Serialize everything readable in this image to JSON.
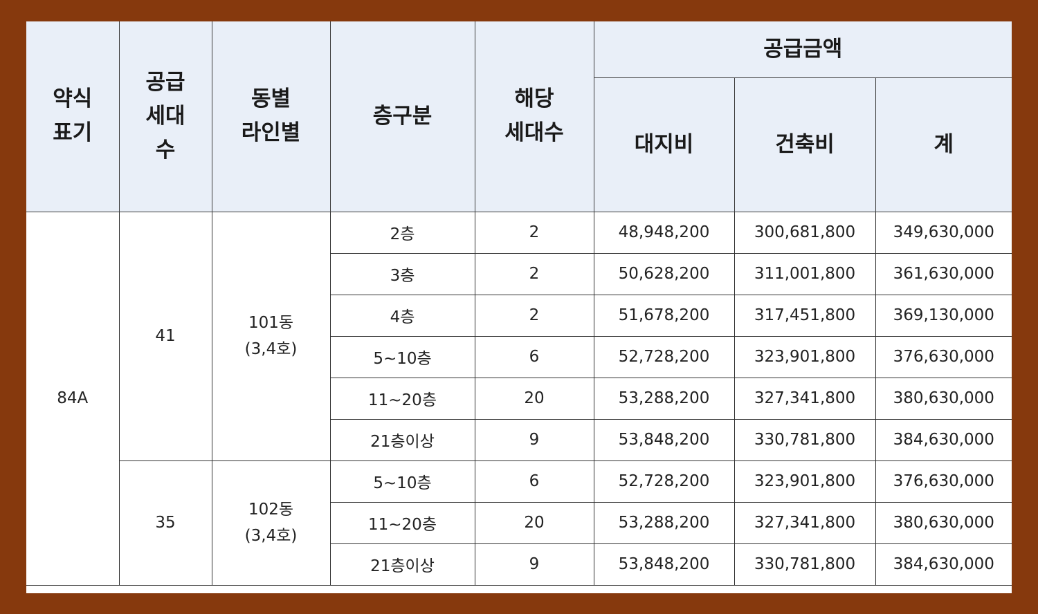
{
  "header": {
    "abbr": [
      "약식",
      "표기"
    ],
    "supply_units": [
      "공급",
      "세대",
      "수"
    ],
    "dong_line": [
      "동별",
      "라인별"
    ],
    "floor": "층구분",
    "units": [
      "해당",
      "세대수"
    ],
    "price_group": "공급금액",
    "land": "대지비",
    "building": "건축비",
    "total": "계"
  },
  "type": "84A",
  "groups": [
    {
      "supply": "41",
      "dong": "101동",
      "ho": "(3,4호)",
      "rows": [
        {
          "floor": "2층",
          "units": "2",
          "land": "48,948,200",
          "building": "300,681,800",
          "total": "349,630,000"
        },
        {
          "floor": "3층",
          "units": "2",
          "land": "50,628,200",
          "building": "311,001,800",
          "total": "361,630,000"
        },
        {
          "floor": "4층",
          "units": "2",
          "land": "51,678,200",
          "building": "317,451,800",
          "total": "369,130,000"
        },
        {
          "floor": "5~10층",
          "units": "6",
          "land": "52,728,200",
          "building": "323,901,800",
          "total": "376,630,000"
        },
        {
          "floor": "11~20층",
          "units": "20",
          "land": "53,288,200",
          "building": "327,341,800",
          "total": "380,630,000"
        },
        {
          "floor": "21층이상",
          "units": "9",
          "land": "53,848,200",
          "building": "330,781,800",
          "total": "384,630,000"
        }
      ]
    },
    {
      "supply": "35",
      "dong": "102동",
      "ho": "(3,4호)",
      "rows": [
        {
          "floor": "5~10층",
          "units": "6",
          "land": "52,728,200",
          "building": "323,901,800",
          "total": "376,630,000"
        },
        {
          "floor": "11~20층",
          "units": "20",
          "land": "53,288,200",
          "building": "327,341,800",
          "total": "380,630,000"
        },
        {
          "floor": "21층이상",
          "units": "9",
          "land": "53,848,200",
          "building": "330,781,800",
          "total": "384,630,000"
        }
      ]
    }
  ],
  "colors": {
    "frame": "#86390d",
    "header_bg": "#e9eff8",
    "border": "#2f2f2f"
  }
}
